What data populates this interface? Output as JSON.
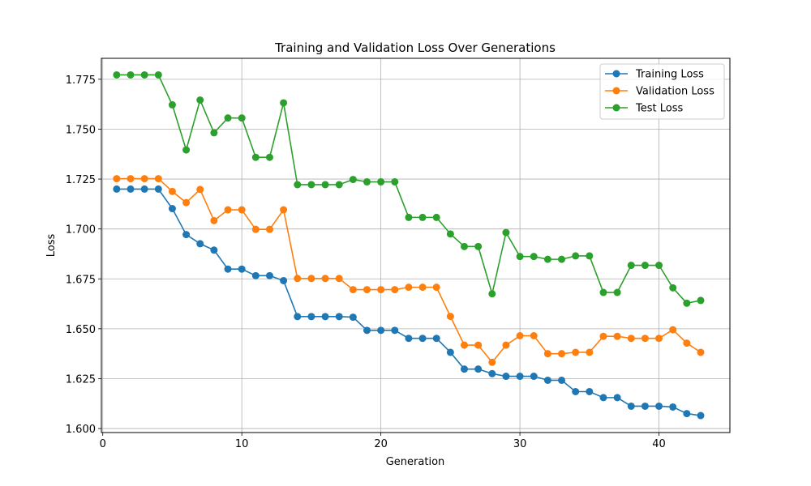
{
  "chart_data": {
    "type": "line",
    "title": "Training and Validation Loss Over Generations",
    "xlabel": "Generation",
    "ylabel": "Loss",
    "xlim": [
      -0.1,
      45.1
    ],
    "ylim": [
      1.598,
      1.7855
    ],
    "xticks": [
      0,
      10,
      20,
      30,
      40
    ],
    "yticks": [
      1.6,
      1.625,
      1.65,
      1.675,
      1.7,
      1.725,
      1.75,
      1.775
    ],
    "ytick_labels": [
      "1.600",
      "1.625",
      "1.650",
      "1.675",
      "1.700",
      "1.725",
      "1.750",
      "1.775"
    ],
    "grid": true,
    "legend_position": "top-right",
    "x": [
      1,
      2,
      3,
      4,
      5,
      6,
      7,
      8,
      9,
      10,
      11,
      12,
      13,
      14,
      15,
      16,
      17,
      18,
      19,
      20,
      21,
      22,
      23,
      24,
      25,
      26,
      27,
      28,
      29,
      30,
      31,
      32,
      33,
      34,
      35,
      36,
      37,
      38,
      39,
      40,
      41,
      42,
      43
    ],
    "series": [
      {
        "name": "Training Loss",
        "color": "#1f77b4",
        "values": [
          1.72,
          1.72,
          1.72,
          1.72,
          1.7102,
          1.6972,
          1.6926,
          1.6894,
          1.6799,
          1.6799,
          1.6766,
          1.6766,
          1.6741,
          1.6561,
          1.6561,
          1.6561,
          1.6561,
          1.6558,
          1.6492,
          1.6492,
          1.6492,
          1.6452,
          1.6452,
          1.6452,
          1.6382,
          1.6298,
          1.6298,
          1.6275,
          1.6262,
          1.6262,
          1.6262,
          1.6242,
          1.6242,
          1.6185,
          1.6185,
          1.6155,
          1.6155,
          1.6112,
          1.6112,
          1.6112,
          1.6108,
          1.6075,
          1.6065
        ]
      },
      {
        "name": "Validation Loss",
        "color": "#ff7f0e",
        "values": [
          1.7252,
          1.7252,
          1.7252,
          1.7252,
          1.7188,
          1.7132,
          1.7198,
          1.7042,
          1.7096,
          1.7096,
          1.6998,
          1.6998,
          1.7096,
          1.6752,
          1.6752,
          1.6752,
          1.6752,
          1.6696,
          1.6696,
          1.6696,
          1.6696,
          1.6708,
          1.6708,
          1.6708,
          1.6562,
          1.6418,
          1.6418,
          1.6332,
          1.6418,
          1.6465,
          1.6465,
          1.6375,
          1.6375,
          1.6382,
          1.6382,
          1.6462,
          1.6462,
          1.6452,
          1.6452,
          1.6452,
          1.6495,
          1.6428,
          1.6382
        ]
      },
      {
        "name": "Test Loss",
        "color": "#2ca02c",
        "values": [
          1.7772,
          1.7772,
          1.7772,
          1.7772,
          1.7622,
          1.7396,
          1.7646,
          1.7482,
          1.7556,
          1.7556,
          1.7359,
          1.7359,
          1.7632,
          1.7222,
          1.7222,
          1.7222,
          1.7222,
          1.7248,
          1.7236,
          1.7236,
          1.7236,
          1.7058,
          1.7058,
          1.7058,
          1.6975,
          1.6912,
          1.6912,
          1.6675,
          1.6982,
          1.6862,
          1.6862,
          1.6848,
          1.6848,
          1.6865,
          1.6865,
          1.6682,
          1.6682,
          1.6818,
          1.6818,
          1.6818,
          1.6705,
          1.6628,
          1.6642
        ]
      }
    ]
  }
}
